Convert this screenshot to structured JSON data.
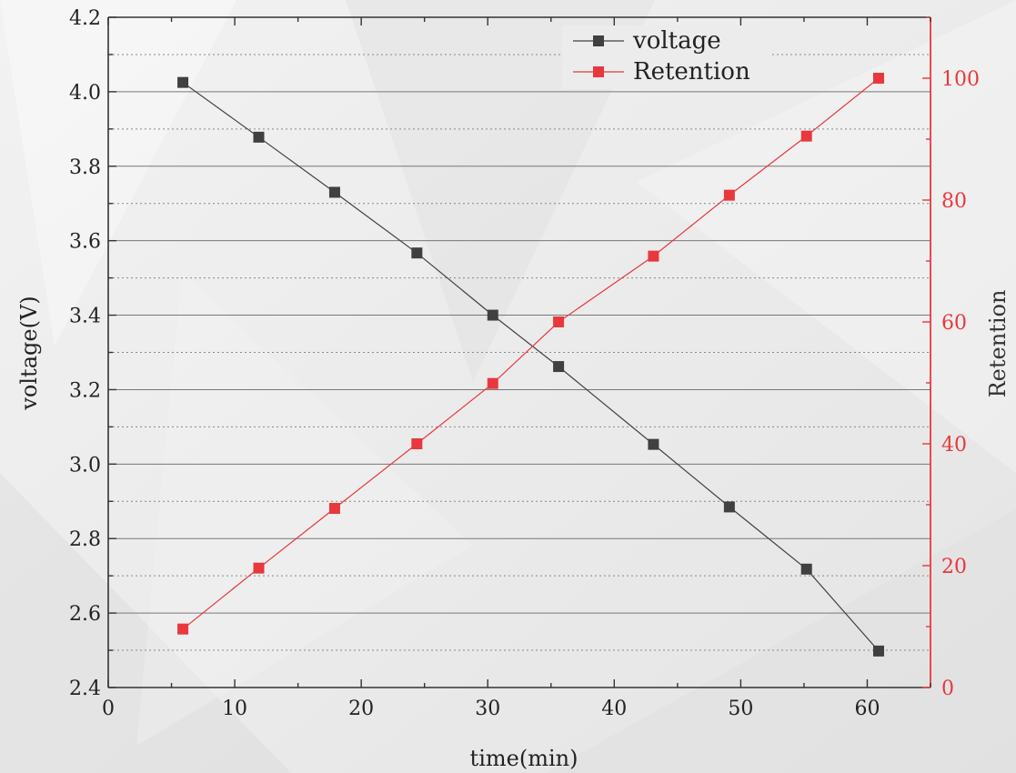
{
  "chart_data": {
    "type": "line",
    "xlabel": "time(min)",
    "ylabel": "voltage(V)",
    "y2label": "Retention",
    "xlim": [
      0,
      65
    ],
    "ylim": [
      2.4,
      4.2
    ],
    "y2lim": [
      0,
      110
    ],
    "x_ticks": [
      0,
      10,
      20,
      30,
      40,
      50,
      60
    ],
    "y_ticks": [
      2.4,
      2.6,
      2.8,
      3.0,
      3.2,
      3.4,
      3.6,
      3.8,
      4.0,
      4.2
    ],
    "y_tick_labels": [
      "2.4",
      "2.6",
      "2.8",
      "3.0",
      "3.2",
      "3.4",
      "3.6",
      "3.8",
      "4.0",
      "4.2"
    ],
    "y2_ticks": [
      0,
      20,
      40,
      60,
      80,
      100
    ],
    "grid": true,
    "legend_position": "top-center",
    "colors": {
      "voltage": "#404040",
      "retention": "#e8383d",
      "axis_right": "#e8383d",
      "axis_left": "#333333"
    },
    "series": [
      {
        "name": "voltage",
        "axis": "left",
        "marker": "square",
        "x": [
          5.9,
          11.9,
          17.9,
          24.4,
          30.4,
          35.6,
          43.1,
          49.1,
          55.2,
          60.9
        ],
        "values": [
          4.025,
          3.878,
          3.73,
          3.567,
          3.4,
          3.262,
          3.053,
          2.885,
          2.718,
          2.498
        ]
      },
      {
        "name": "Retention",
        "axis": "right",
        "marker": "square",
        "x": [
          5.9,
          11.9,
          17.9,
          24.4,
          30.4,
          35.6,
          43.1,
          49.1,
          55.2,
          60.9
        ],
        "values": [
          9.6,
          19.6,
          29.4,
          40.0,
          49.9,
          60.0,
          70.8,
          80.8,
          90.5,
          100.0
        ]
      }
    ]
  }
}
